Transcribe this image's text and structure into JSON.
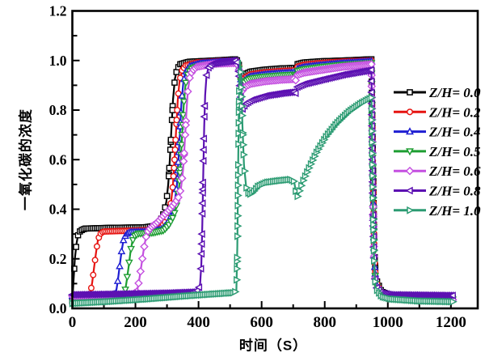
{
  "figure": {
    "background": "#ffffff",
    "frame_color": "#000000"
  },
  "chart_data": {
    "type": "line",
    "title": "",
    "xlabel": "时间（S）",
    "ylabel": "一氧化碳的浓度",
    "xlim": [
      0,
      1285
    ],
    "ylim": [
      0,
      1.2
    ],
    "grid": false,
    "legend_position": "right-middle",
    "x_ticks": [
      0,
      200,
      400,
      600,
      800,
      1000,
      1200
    ],
    "x_tick_labels": [
      "0",
      "200",
      "400",
      "600",
      "800",
      "1000",
      "1200"
    ],
    "x_minor_step": 100,
    "y_ticks": [
      0,
      0.2,
      0.4,
      0.6,
      0.8,
      1.0,
      1.2
    ],
    "y_tick_labels": [
      "0.0",
      "0.2",
      "0.4",
      "0.6",
      "0.8",
      "1.0",
      "1.2"
    ],
    "y_minor_step": 0.1,
    "series": [
      {
        "name": "Z/H= 0.0",
        "color": "#000000",
        "marker": "square",
        "points": [
          [
            0,
            0.03
          ],
          [
            4,
            0.12
          ],
          [
            8,
            0.2
          ],
          [
            13,
            0.26
          ],
          [
            18,
            0.295
          ],
          [
            25,
            0.313
          ],
          [
            40,
            0.322
          ],
          [
            120,
            0.325
          ],
          [
            230,
            0.327
          ],
          [
            262,
            0.333
          ],
          [
            278,
            0.35
          ],
          [
            290,
            0.385
          ],
          [
            298,
            0.43
          ],
          [
            304,
            0.5
          ],
          [
            309,
            0.6
          ],
          [
            314,
            0.72
          ],
          [
            319,
            0.84
          ],
          [
            325,
            0.925
          ],
          [
            332,
            0.965
          ],
          [
            342,
            0.985
          ],
          [
            370,
            0.995
          ],
          [
            450,
            1.0
          ],
          [
            520,
            1.005
          ],
          [
            527,
            0.99
          ],
          [
            533,
            0.945
          ],
          [
            539,
            0.925
          ],
          [
            548,
            0.945
          ],
          [
            565,
            0.955
          ],
          [
            610,
            0.963
          ],
          [
            660,
            0.968
          ],
          [
            702,
            0.97
          ],
          [
            708,
            0.965
          ],
          [
            713,
            0.985
          ],
          [
            735,
            0.992
          ],
          [
            790,
            0.997
          ],
          [
            860,
            1.0
          ],
          [
            948,
            1.005
          ],
          [
            953,
            0.6
          ],
          [
            957,
            0.25
          ],
          [
            962,
            0.12
          ],
          [
            980,
            0.068
          ],
          [
            1010,
            0.052
          ],
          [
            1060,
            0.046
          ],
          [
            1210,
            0.044
          ]
        ]
      },
      {
        "name": "Z/H= 0.2",
        "color": "#e61310",
        "marker": "circle",
        "points": [
          [
            0,
            0.048
          ],
          [
            45,
            0.05
          ],
          [
            57,
            0.06
          ],
          [
            63,
            0.105
          ],
          [
            69,
            0.165
          ],
          [
            75,
            0.225
          ],
          [
            81,
            0.275
          ],
          [
            88,
            0.3
          ],
          [
            98,
            0.31
          ],
          [
            170,
            0.313
          ],
          [
            250,
            0.316
          ],
          [
            280,
            0.325
          ],
          [
            295,
            0.35
          ],
          [
            306,
            0.385
          ],
          [
            313,
            0.43
          ],
          [
            319,
            0.5
          ],
          [
            324,
            0.6
          ],
          [
            329,
            0.72
          ],
          [
            334,
            0.84
          ],
          [
            340,
            0.92
          ],
          [
            348,
            0.96
          ],
          [
            360,
            0.98
          ],
          [
            395,
            0.992
          ],
          [
            470,
            0.998
          ],
          [
            520,
            1.0
          ],
          [
            527,
            0.985
          ],
          [
            533,
            0.935
          ],
          [
            539,
            0.912
          ],
          [
            548,
            0.932
          ],
          [
            565,
            0.944
          ],
          [
            610,
            0.952
          ],
          [
            660,
            0.957
          ],
          [
            702,
            0.96
          ],
          [
            708,
            0.955
          ],
          [
            713,
            0.975
          ],
          [
            735,
            0.983
          ],
          [
            790,
            0.99
          ],
          [
            860,
            0.996
          ],
          [
            948,
            1.0
          ],
          [
            953,
            0.55
          ],
          [
            957,
            0.22
          ],
          [
            962,
            0.11
          ],
          [
            980,
            0.062
          ],
          [
            1010,
            0.048
          ],
          [
            1060,
            0.042
          ],
          [
            1210,
            0.04
          ]
        ]
      },
      {
        "name": "Z/H= 0.4",
        "color": "#1e1ed2",
        "marker": "triangle-up",
        "points": [
          [
            0,
            0.05
          ],
          [
            125,
            0.052
          ],
          [
            138,
            0.062
          ],
          [
            144,
            0.11
          ],
          [
            150,
            0.17
          ],
          [
            156,
            0.23
          ],
          [
            162,
            0.275
          ],
          [
            170,
            0.298
          ],
          [
            182,
            0.308
          ],
          [
            245,
            0.31
          ],
          [
            285,
            0.32
          ],
          [
            302,
            0.345
          ],
          [
            315,
            0.38
          ],
          [
            324,
            0.425
          ],
          [
            331,
            0.49
          ],
          [
            336,
            0.59
          ],
          [
            341,
            0.71
          ],
          [
            346,
            0.83
          ],
          [
            352,
            0.915
          ],
          [
            360,
            0.955
          ],
          [
            372,
            0.977
          ],
          [
            410,
            0.99
          ],
          [
            480,
            0.996
          ],
          [
            520,
            0.998
          ],
          [
            527,
            0.982
          ],
          [
            533,
            0.928
          ],
          [
            539,
            0.905
          ],
          [
            548,
            0.924
          ],
          [
            565,
            0.936
          ],
          [
            610,
            0.944
          ],
          [
            660,
            0.949
          ],
          [
            702,
            0.952
          ],
          [
            708,
            0.947
          ],
          [
            713,
            0.966
          ],
          [
            735,
            0.974
          ],
          [
            790,
            0.982
          ],
          [
            860,
            0.99
          ],
          [
            948,
            0.997
          ],
          [
            953,
            0.5
          ],
          [
            957,
            0.2
          ],
          [
            962,
            0.1
          ],
          [
            980,
            0.058
          ],
          [
            1010,
            0.045
          ],
          [
            1210,
            0.038
          ]
        ]
      },
      {
        "name": "Z/H= 0.5",
        "color": "#1e9e32",
        "marker": "triangle-down",
        "points": [
          [
            0,
            0.045
          ],
          [
            152,
            0.05
          ],
          [
            166,
            0.06
          ],
          [
            172,
            0.108
          ],
          [
            178,
            0.165
          ],
          [
            184,
            0.225
          ],
          [
            190,
            0.27
          ],
          [
            198,
            0.293
          ],
          [
            210,
            0.302
          ],
          [
            255,
            0.305
          ],
          [
            290,
            0.315
          ],
          [
            308,
            0.34
          ],
          [
            322,
            0.375
          ],
          [
            331,
            0.42
          ],
          [
            338,
            0.48
          ],
          [
            343,
            0.58
          ],
          [
            348,
            0.7
          ],
          [
            353,
            0.82
          ],
          [
            359,
            0.905
          ],
          [
            367,
            0.948
          ],
          [
            380,
            0.97
          ],
          [
            420,
            0.983
          ],
          [
            490,
            0.99
          ],
          [
            520,
            0.992
          ],
          [
            527,
            0.976
          ],
          [
            533,
            0.92
          ],
          [
            539,
            0.897
          ],
          [
            548,
            0.915
          ],
          [
            565,
            0.927
          ],
          [
            610,
            0.935
          ],
          [
            660,
            0.94
          ],
          [
            702,
            0.943
          ],
          [
            708,
            0.938
          ],
          [
            713,
            0.957
          ],
          [
            735,
            0.965
          ],
          [
            790,
            0.974
          ],
          [
            860,
            0.983
          ],
          [
            948,
            0.99
          ],
          [
            953,
            0.48
          ],
          [
            957,
            0.185
          ],
          [
            962,
            0.095
          ],
          [
            980,
            0.055
          ],
          [
            1010,
            0.043
          ],
          [
            1210,
            0.036
          ]
        ]
      },
      {
        "name": "Z/H= 0.6",
        "color": "#c44fe0",
        "marker": "diamond",
        "points": [
          [
            0,
            0.05
          ],
          [
            190,
            0.055
          ],
          [
            205,
            0.068
          ],
          [
            212,
            0.115
          ],
          [
            219,
            0.175
          ],
          [
            226,
            0.235
          ],
          [
            233,
            0.285
          ],
          [
            241,
            0.315
          ],
          [
            252,
            0.33
          ],
          [
            268,
            0.345
          ],
          [
            290,
            0.375
          ],
          [
            312,
            0.405
          ],
          [
            328,
            0.43
          ],
          [
            338,
            0.452
          ],
          [
            345,
            0.49
          ],
          [
            351,
            0.56
          ],
          [
            356,
            0.66
          ],
          [
            361,
            0.78
          ],
          [
            366,
            0.875
          ],
          [
            372,
            0.93
          ],
          [
            380,
            0.958
          ],
          [
            395,
            0.975
          ],
          [
            450,
            0.987
          ],
          [
            520,
            0.99
          ],
          [
            527,
            0.972
          ],
          [
            533,
            0.905
          ],
          [
            539,
            0.878
          ],
          [
            548,
            0.895
          ],
          [
            565,
            0.906
          ],
          [
            610,
            0.916
          ],
          [
            660,
            0.922
          ],
          [
            702,
            0.925
          ],
          [
            708,
            0.92
          ],
          [
            713,
            0.942
          ],
          [
            735,
            0.951
          ],
          [
            790,
            0.962
          ],
          [
            860,
            0.975
          ],
          [
            948,
            0.985
          ],
          [
            953,
            0.45
          ],
          [
            957,
            0.17
          ],
          [
            962,
            0.09
          ],
          [
            980,
            0.055
          ],
          [
            1010,
            0.043
          ],
          [
            1210,
            0.035
          ]
        ]
      },
      {
        "name": "Z/H= 0.8",
        "color": "#5c10b2",
        "marker": "triangle-left",
        "points": [
          [
            0,
            0.055
          ],
          [
            150,
            0.058
          ],
          [
            300,
            0.062
          ],
          [
            385,
            0.066
          ],
          [
            400,
            0.075
          ],
          [
            405,
            0.1
          ],
          [
            409,
            0.18
          ],
          [
            412,
            0.34
          ],
          [
            415,
            0.55
          ],
          [
            418,
            0.73
          ],
          [
            421,
            0.86
          ],
          [
            425,
            0.935
          ],
          [
            431,
            0.97
          ],
          [
            445,
            0.988
          ],
          [
            520,
            1.0
          ],
          [
            527,
            0.975
          ],
          [
            533,
            0.86
          ],
          [
            540,
            0.805
          ],
          [
            550,
            0.825
          ],
          [
            568,
            0.84
          ],
          [
            615,
            0.858
          ],
          [
            665,
            0.868
          ],
          [
            702,
            0.873
          ],
          [
            708,
            0.868
          ],
          [
            713,
            0.893
          ],
          [
            735,
            0.905
          ],
          [
            790,
            0.922
          ],
          [
            860,
            0.943
          ],
          [
            948,
            0.962
          ],
          [
            953,
            0.42
          ],
          [
            957,
            0.16
          ],
          [
            962,
            0.09
          ],
          [
            980,
            0.062
          ],
          [
            1010,
            0.055
          ],
          [
            1210,
            0.052
          ]
        ]
      },
      {
        "name": "Z/H= 1.0",
        "color": "#2b9b72",
        "marker": "triangle-right",
        "points": [
          [
            0,
            0.02
          ],
          [
            120,
            0.028
          ],
          [
            240,
            0.038
          ],
          [
            360,
            0.05
          ],
          [
            450,
            0.058
          ],
          [
            510,
            0.063
          ],
          [
            520,
            0.07
          ],
          [
            523,
            0.25
          ],
          [
            526,
            0.62
          ],
          [
            529,
            0.92
          ],
          [
            532,
            1.0
          ],
          [
            535,
            0.93
          ],
          [
            539,
            0.74
          ],
          [
            544,
            0.58
          ],
          [
            551,
            0.49
          ],
          [
            560,
            0.458
          ],
          [
            572,
            0.468
          ],
          [
            588,
            0.492
          ],
          [
            615,
            0.508
          ],
          [
            655,
            0.515
          ],
          [
            692,
            0.52
          ],
          [
            703,
            0.512
          ],
          [
            709,
            0.465
          ],
          [
            714,
            0.452
          ],
          [
            721,
            0.478
          ],
          [
            733,
            0.52
          ],
          [
            752,
            0.572
          ],
          [
            775,
            0.632
          ],
          [
            805,
            0.695
          ],
          [
            838,
            0.747
          ],
          [
            875,
            0.792
          ],
          [
            912,
            0.825
          ],
          [
            948,
            0.85
          ],
          [
            953,
            0.4
          ],
          [
            957,
            0.15
          ],
          [
            962,
            0.08
          ],
          [
            980,
            0.048
          ],
          [
            1010,
            0.038
          ],
          [
            1100,
            0.03
          ],
          [
            1210,
            0.027
          ]
        ]
      }
    ]
  }
}
